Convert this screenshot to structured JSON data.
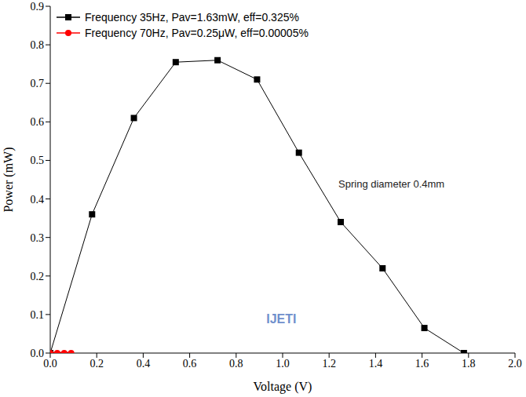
{
  "chart_data": {
    "type": "line",
    "x_label": "Voltage (V)",
    "y_label": "Power (mW)",
    "xlim": [
      0,
      2.0
    ],
    "xticks": [
      {
        "value": 0,
        "label": "0.0"
      },
      0.2,
      0.4,
      0.6,
      0.8,
      {
        "value": 1,
        "label": "1.0"
      },
      1.2,
      1.4,
      1.6,
      1.8,
      {
        "value": 2,
        "label": "2.0"
      }
    ],
    "ylim": [
      0,
      0.9
    ],
    "yticks": [
      {
        "value": 0,
        "label": "0.0"
      },
      0.1,
      0.2,
      0.3,
      0.4,
      0.5,
      0.6,
      0.7,
      0.8,
      0.9
    ],
    "grid": false,
    "legend": "upper left",
    "annotations": [
      "Spring diameter 0.4mm",
      "IJETI"
    ],
    "series": [
      {
        "name": "Frequency 35Hz, Pav=1.63mW, eff=0.325%",
        "color": "#000000",
        "marker": "square",
        "x": [
          0,
          0.18,
          0.36,
          0.54,
          0.72,
          0.89,
          1.07,
          1.25,
          1.43,
          1.61,
          1.78
        ],
        "values": [
          0,
          0.36,
          0.61,
          0.755,
          0.76,
          0.71,
          0.52,
          0.34,
          0.22,
          0.065,
          0
        ]
      },
      {
        "name": "Frequency 70Hz, Pav=0.25μW, eff=0.00005%",
        "color": "#ff0000",
        "marker": "circle",
        "x": [
          0,
          0.03,
          0.06,
          0.09
        ],
        "values": [
          0,
          0.0002,
          0.0002,
          0
        ]
      }
    ]
  }
}
